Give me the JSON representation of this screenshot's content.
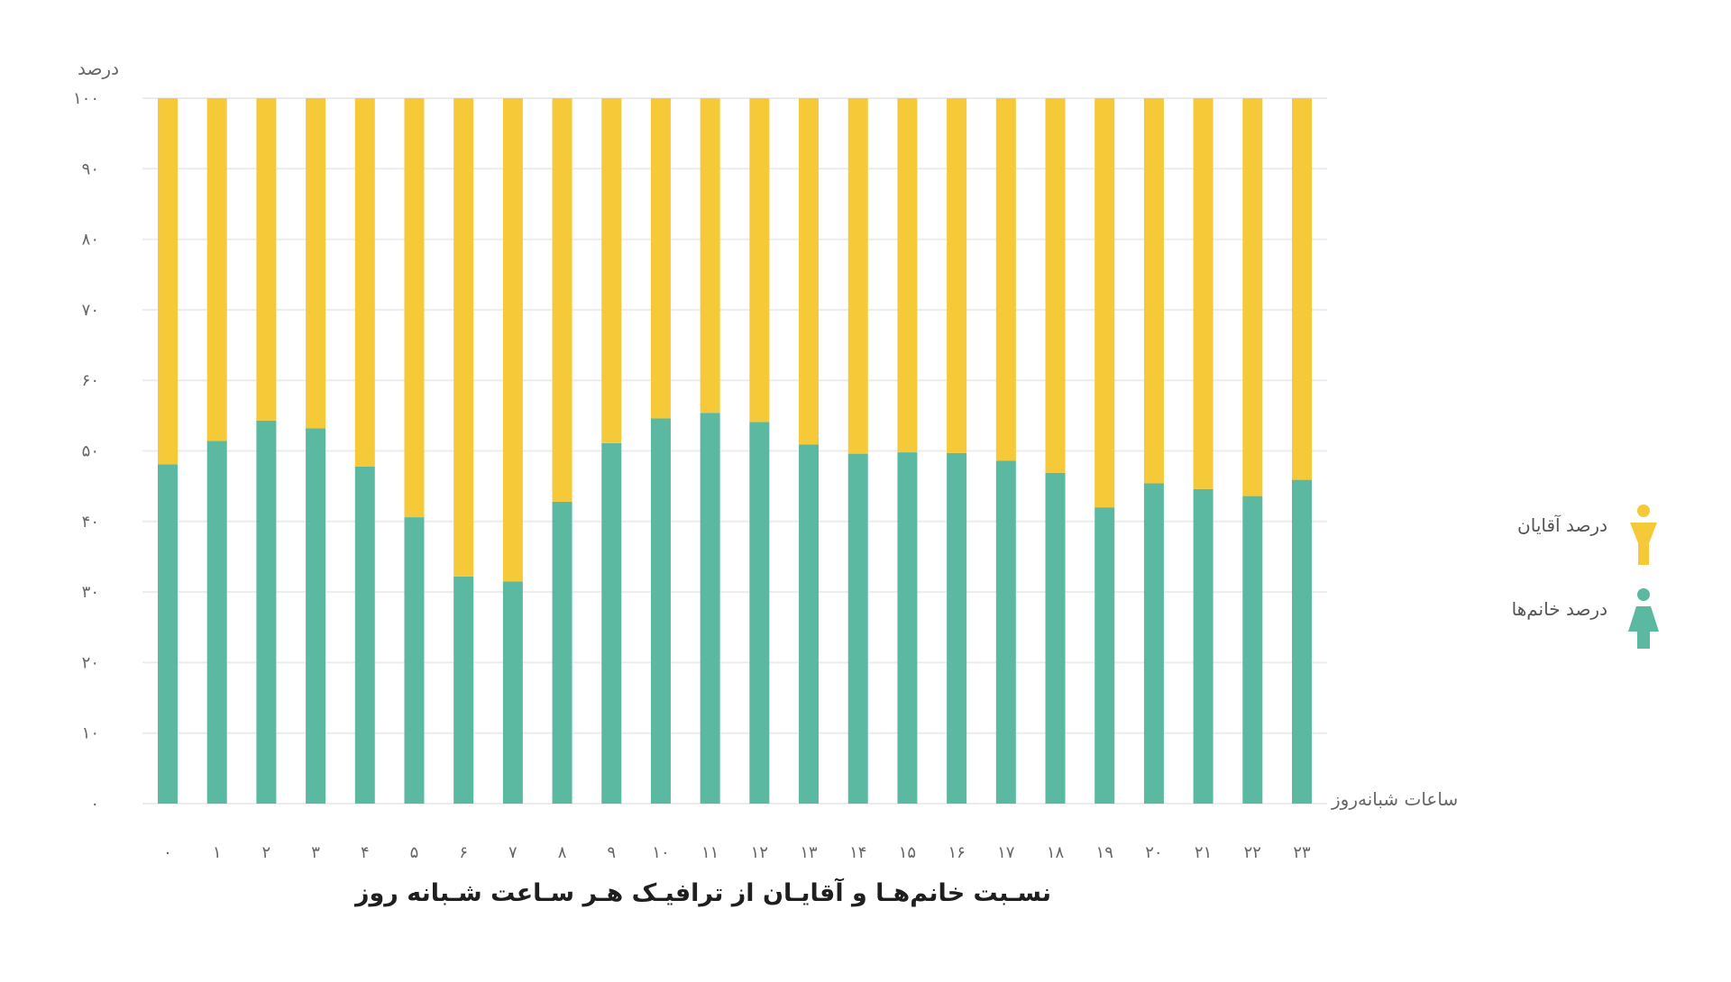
{
  "chart_data": {
    "type": "bar",
    "stacked": true,
    "title": "نسـبت خانم‌هـا و آقایـان از ترافیـک هـر سـاعت شـبانه روز",
    "xlabel": "ساعات شبانه‌روز",
    "ylabel": "درصد",
    "ylim": [
      0,
      100
    ],
    "yticks": [
      "۰",
      "۱۰",
      "۲۰",
      "۳۰",
      "۴۰",
      "۵۰",
      "۶۰",
      "۷۰",
      "۸۰",
      "۹۰",
      "۱۰۰"
    ],
    "categories": [
      "۰",
      "۱",
      "۲",
      "۳",
      "۴",
      "۵",
      "۶",
      "۷",
      "۸",
      "۹",
      "۱۰",
      "۱۱",
      "۱۲",
      "۱۳",
      "۱۴",
      "۱۵",
      "۱۶",
      "۱۷",
      "۱۸",
      "۱۹",
      "۲۰",
      "۲۱",
      "۲۲",
      "۲۳"
    ],
    "series": [
      {
        "name": "درصد خانم‌ها",
        "color": "#5cb9a1",
        "icon": "woman-icon",
        "values": [
          48.1,
          51.4,
          54.3,
          53.2,
          47.8,
          40.6,
          32.2,
          31.5,
          42.8,
          51.1,
          54.6,
          55.4,
          54.1,
          50.9,
          49.6,
          49.8,
          49.7,
          48.6,
          46.9,
          42.0,
          45.4,
          44.6,
          43.6,
          45.9
        ]
      },
      {
        "name": "درصد آقایان",
        "color": "#f5c937",
        "icon": "man-icon",
        "values": [
          51.9,
          48.6,
          45.7,
          46.8,
          52.2,
          59.4,
          67.8,
          68.5,
          57.2,
          48.9,
          45.4,
          44.6,
          45.9,
          49.1,
          50.4,
          50.2,
          50.3,
          51.4,
          53.1,
          58.0,
          54.6,
          55.4,
          56.4,
          54.1
        ]
      }
    ],
    "grid": true,
    "legend_position": "right"
  }
}
